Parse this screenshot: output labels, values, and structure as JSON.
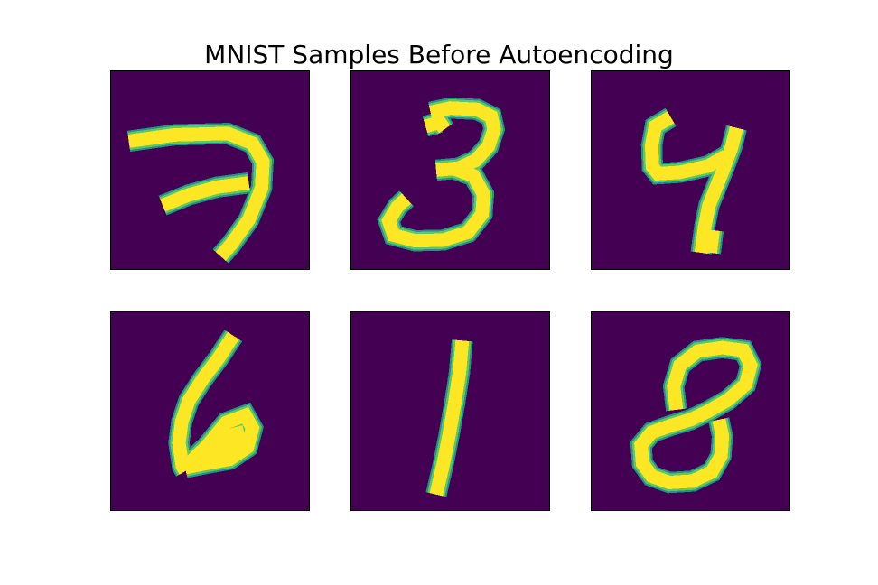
{
  "title": "MNIST Samples Before Autoencoding",
  "colors": {
    "background": "#440154",
    "ink_edge_teal": "#21918c",
    "ink_mid_green": "#5ec962",
    "ink_core_yellow": "#fde725"
  },
  "samples": [
    {
      "digit_shown": "7"
    },
    {
      "digit_shown": "3"
    },
    {
      "digit_shown": "4"
    },
    {
      "digit_shown": "6"
    },
    {
      "digit_shown": "1"
    },
    {
      "digit_shown": "8"
    }
  ]
}
